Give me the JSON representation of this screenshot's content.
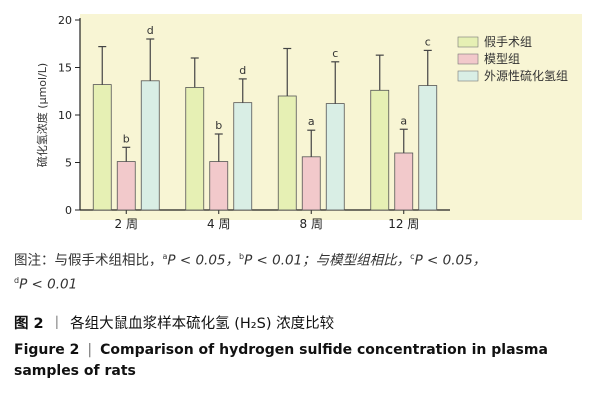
{
  "chart_data": {
    "type": "bar",
    "categories": [
      "2 周",
      "4 周",
      "8 周",
      "12 周"
    ],
    "ylabel": "硫化氢浓度 (µmol/L)",
    "ylim": [
      0,
      20
    ],
    "yticks": [
      0,
      5,
      10,
      15,
      20
    ],
    "legend_position": "right",
    "series": [
      {
        "name": "假手术组",
        "color": "#e6f0b4",
        "values": [
          13.2,
          12.9,
          12.0,
          12.6
        ],
        "errors": [
          4.0,
          3.1,
          5.0,
          3.7
        ],
        "labels": [
          "",
          "",
          "",
          ""
        ]
      },
      {
        "name": "模型组",
        "color": "#f2c9cb",
        "values": [
          5.1,
          5.1,
          5.6,
          6.0
        ],
        "errors": [
          1.5,
          2.9,
          2.8,
          2.5
        ],
        "labels": [
          "b",
          "b",
          "a",
          "a"
        ]
      },
      {
        "name": "外源性硫化氢组",
        "color": "#d9eee5",
        "values": [
          13.6,
          11.3,
          11.2,
          13.1
        ],
        "errors": [
          4.4,
          2.5,
          4.4,
          3.7
        ],
        "labels": [
          "d",
          "d",
          "c",
          "c"
        ]
      }
    ],
    "plot_background": "#f8f5d4"
  },
  "note": {
    "prefix": "图注：与假手术组相比，",
    "sup_a": "a",
    "p_a": "P < 0.05，",
    "sup_b": "b",
    "p_b": "P < 0.01；与模型组相比，",
    "sup_c": "c",
    "p_c": "P < 0.05，",
    "sup_d": "d",
    "p_d": "P < 0.01"
  },
  "caption_zh": {
    "fig_no": "图 2",
    "sep": "丨",
    "title": "各组大鼠血浆样本硫化氢 (H₂S) 浓度比较"
  },
  "caption_en": {
    "fig_no": "Figure 2",
    "sep": "|",
    "title": "Comparison of hydrogen sulfide concentration in plasma samples of rats"
  }
}
